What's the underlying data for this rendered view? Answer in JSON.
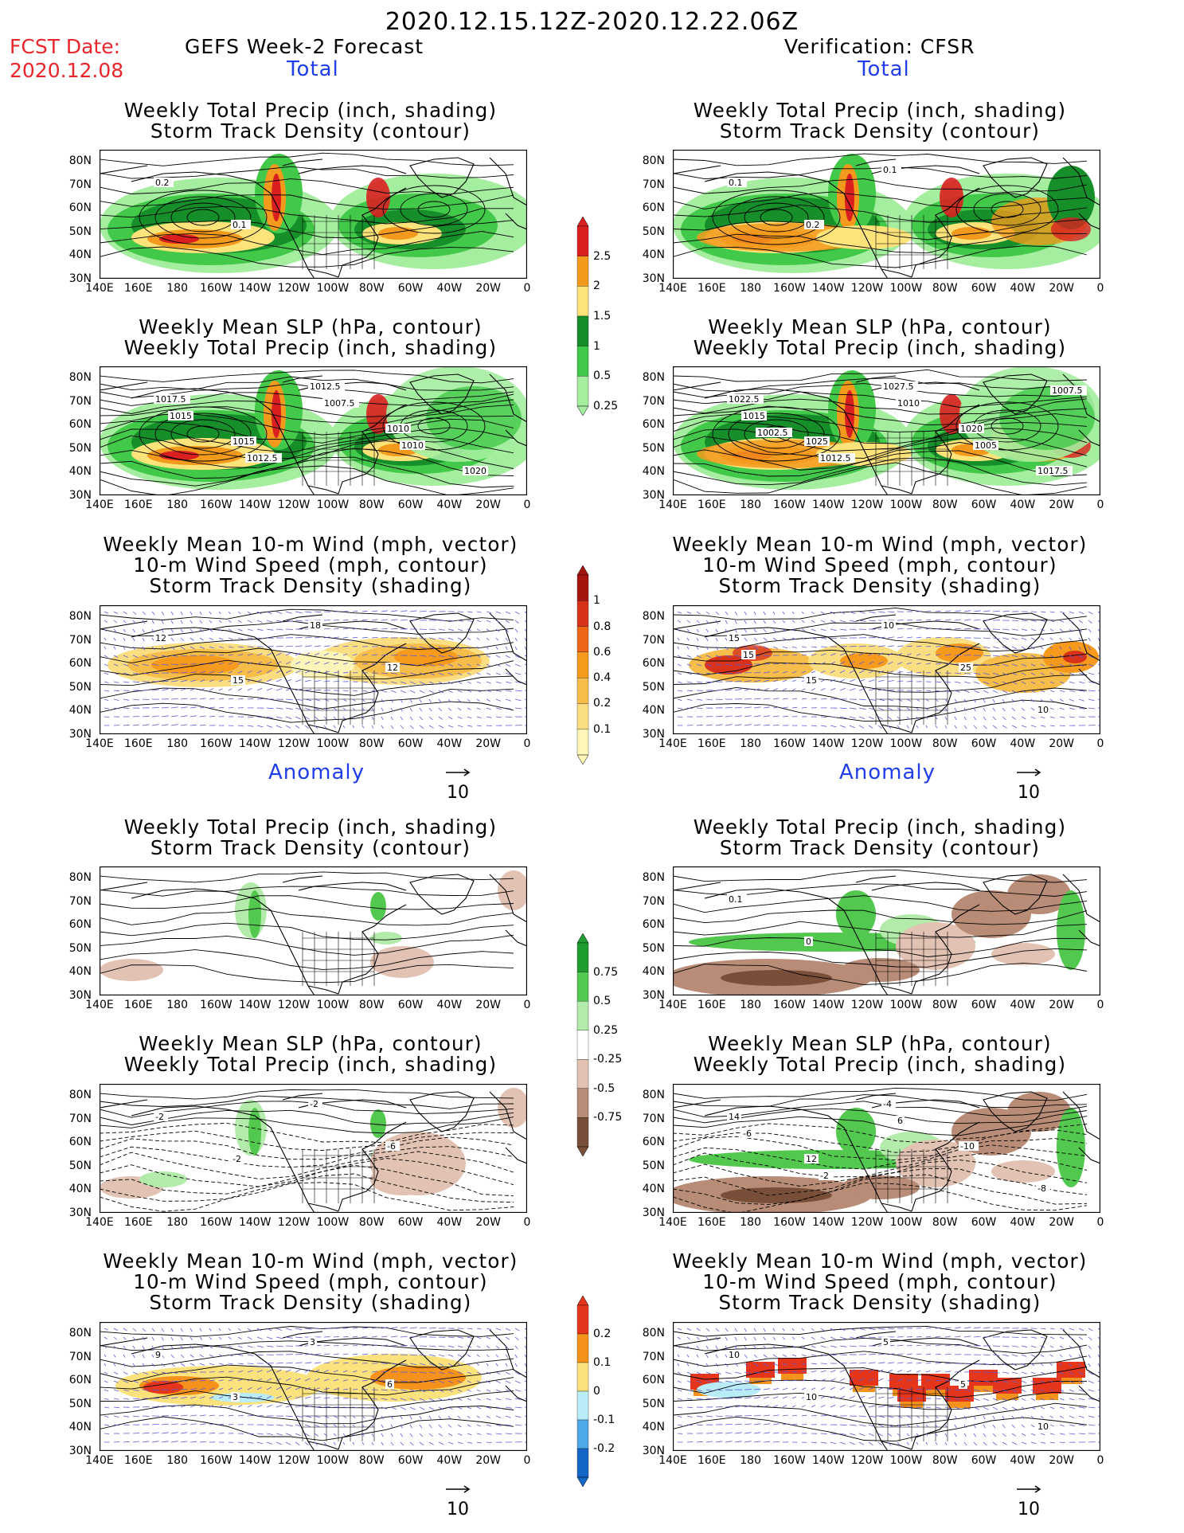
{
  "header": {
    "date_range": "2020.12.15.12Z-2020.12.22.06Z",
    "fcst_label": "FCST Date:",
    "fcst_date": "2020.12.08",
    "left_title": "GEFS Week-2 Forecast",
    "right_title": "Verification: CFSR"
  },
  "sections": {
    "total": "Total",
    "anomaly": "Anomaly"
  },
  "panel_titles": {
    "precip_storm": [
      "Weekly Total Precip (inch, shading)",
      "Storm Track Density (contour)"
    ],
    "slp_precip": [
      "Weekly Mean SLP (hPa, contour)",
      "Weekly Total Precip (inch, shading)"
    ],
    "wind_storm": [
      "Weekly Mean 10-m Wind (mph, vector)",
      "10-m Wind Speed (mph, contour)",
      "Storm Track Density (shading)"
    ]
  },
  "axes": {
    "lat_labels": [
      "80N",
      "70N",
      "60N",
      "50N",
      "40N",
      "30N"
    ],
    "lon_labels": [
      "140E",
      "160E",
      "180",
      "160W",
      "140W",
      "120W",
      "100W",
      "80W",
      "60W",
      "40W",
      "20W",
      "0"
    ]
  },
  "vector_ref": "10",
  "colorbars": {
    "total_precip": {
      "labels": [
        "2.5",
        "2",
        "1.5",
        "1",
        "0.5",
        "0.25"
      ],
      "colors": [
        "#d91f1f",
        "#f39a1d",
        "#fde37a",
        "#168f2b",
        "#43c94a",
        "#a5eea0"
      ]
    },
    "total_storm": {
      "labels": [
        "1",
        "0.8",
        "0.6",
        "0.4",
        "0.2",
        "0.1"
      ],
      "colors": [
        "#a5150f",
        "#d8331a",
        "#ee6618",
        "#f59a1c",
        "#f7bd4a",
        "#fcde82",
        "#fdf6b8"
      ]
    },
    "anom_precip": {
      "labels": [
        "0.75",
        "0.5",
        "0.25",
        "-0.25",
        "-0.5",
        "-0.75"
      ],
      "colors": [
        "#1e9e30",
        "#52c84f",
        "#b3ecaa",
        "#ffffff",
        "#e2c2b3",
        "#b88c77",
        "#7a4f3a"
      ]
    },
    "anom_storm": {
      "labels": [
        "0.2",
        "0.1",
        "0",
        "-0.1",
        "-0.2"
      ],
      "colors": [
        "#e5351b",
        "#f4921c",
        "#fbe27c",
        "#b9ecf6",
        "#4ea9e6",
        "#1666c8"
      ]
    }
  },
  "contour_labels": {
    "l_total_precip": [
      "0.2",
      "0.1"
    ],
    "r_total_precip": [
      "0.1",
      "0.2",
      "0.1"
    ],
    "l_total_slp": [
      "1017.5",
      "1015",
      "1012.5",
      "1010",
      "1020",
      "1015",
      "1012.5",
      "1007.5",
      "1010"
    ],
    "r_total_slp": [
      "1022.5",
      "1025",
      "1027.5",
      "1020",
      "1017.5",
      "1015",
      "1012.5",
      "1010",
      "1005",
      "1007.5",
      "1002.5"
    ],
    "l_total_wind": [
      "12",
      "15",
      "18",
      "12"
    ],
    "r_total_wind": [
      "15",
      "15",
      "10",
      "25",
      "10",
      "15"
    ],
    "l_anom_precip": [],
    "r_anom_precip": [
      "0.1",
      "0"
    ],
    "l_anom_slp": [
      "-2",
      "-2",
      "-2",
      "-6"
    ],
    "r_anom_slp": [
      "14",
      "12",
      "-4",
      "-10",
      "-8",
      "-6",
      "-2",
      "6"
    ],
    "l_anom_wind": [
      "9",
      "3",
      "3",
      "6"
    ],
    "r_anom_wind": [
      "10",
      "10",
      "5",
      "5",
      "10"
    ]
  }
}
